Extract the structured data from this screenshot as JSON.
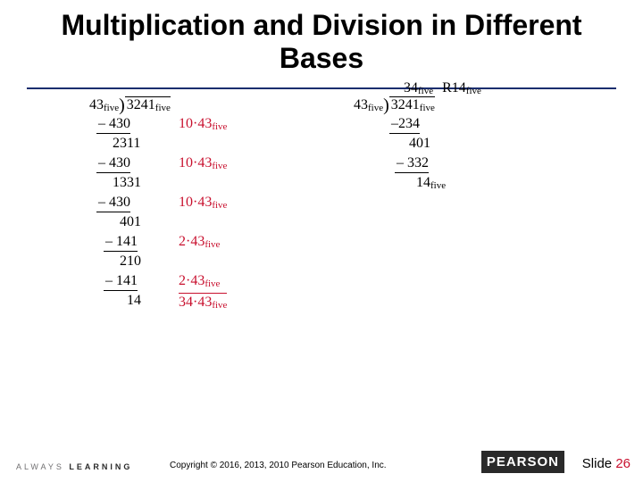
{
  "title": "Multiplication and Division in Different Bases",
  "base_label": "five",
  "left": {
    "divisor": "43",
    "dividend": "3241",
    "rows": [
      {
        "indent": 8,
        "text": "– 430",
        "annot": "10·43",
        "rule_under": true
      },
      {
        "indent": 26,
        "text": "2311",
        "annot": "",
        "rule_under": false
      },
      {
        "indent": 8,
        "text": "– 430",
        "annot": "10·43",
        "rule_under": true
      },
      {
        "indent": 26,
        "text": "1331",
        "annot": "",
        "rule_under": false
      },
      {
        "indent": 8,
        "text": "– 430",
        "annot": "10·43",
        "rule_under": true
      },
      {
        "indent": 34,
        "text": "401",
        "annot": "",
        "rule_under": false
      },
      {
        "indent": 16,
        "text": "– 141",
        "annot": "2·43",
        "rule_under": true
      },
      {
        "indent": 34,
        "text": "210",
        "annot": "",
        "rule_under": false
      },
      {
        "indent": 16,
        "text": "– 141",
        "annot": "2·43",
        "rule_under": true
      },
      {
        "indent": 42,
        "text": "14",
        "annot": "34·43",
        "rule_under": false,
        "annot_over": true
      }
    ]
  },
  "right": {
    "divisor": "43",
    "dividend": "3241",
    "quotient": "34",
    "remainder_prefix": "R",
    "remainder": "14",
    "rows": [
      {
        "indent": 0,
        "text": "–234",
        "rule_under": true
      },
      {
        "indent": 22,
        "text": "401",
        "rule_under": false
      },
      {
        "indent": 6,
        "text": "– 332",
        "rule_under": true
      },
      {
        "indent": 30,
        "text": "14",
        "rule_under": false,
        "has_sub": true
      }
    ]
  },
  "colors": {
    "accent": "#c8102e",
    "rule": "#1a2d6e",
    "text": "#000000"
  },
  "footer": {
    "tagline_a": "ALWAYS",
    "tagline_b": "LEARNING",
    "copyright": "Copyright © 2016, 2013, 2010 Pearson Education, Inc.",
    "brand": "PEARSON",
    "slide_label": "Slide",
    "slide_num": "26"
  }
}
